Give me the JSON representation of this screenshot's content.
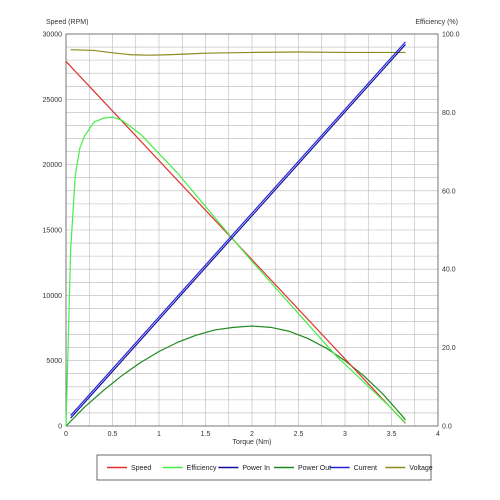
{
  "chart_data": {
    "type": "line",
    "xlabel": "Torque (Nm)",
    "ylabel_left": "Speed (RPM)",
    "ylabel_right": "Efficiency (%)",
    "xlim": [
      0,
      4
    ],
    "ylim_left": [
      0,
      30000
    ],
    "ylim_right": [
      0,
      100
    ],
    "x_ticks": [
      "0",
      "0.5",
      "1",
      "1.5",
      "2",
      "2.5",
      "3",
      "3.5",
      "4"
    ],
    "y_left_ticks": [
      "0",
      "5000",
      "10000",
      "15000",
      "20000",
      "25000",
      "30000"
    ],
    "y_right_ticks": [
      "0.0",
      "20.0",
      "40.0",
      "60.0",
      "80.0",
      "100.0"
    ],
    "grid": true,
    "legend_position": "bottom",
    "series": [
      {
        "name": "Speed",
        "color": "#e03030",
        "axis": "left",
        "x": [
          0,
          3.65
        ],
        "y": [
          27900,
          200
        ]
      },
      {
        "name": "Efficiency",
        "color": "#44ee44",
        "axis": "right",
        "x": [
          0.0,
          0.02,
          0.05,
          0.1,
          0.15,
          0.2,
          0.3,
          0.4,
          0.5,
          0.6,
          0.8,
          1.0,
          1.2,
          1.5,
          1.8,
          2.0,
          2.3,
          2.6,
          2.9,
          3.1,
          3.3,
          3.5,
          3.6,
          3.65
        ],
        "y": [
          0,
          18,
          45,
          64,
          71,
          74,
          77.5,
          78.5,
          78.8,
          78,
          74.5,
          69.5,
          64.5,
          56,
          47.5,
          42,
          34,
          26,
          18,
          13.5,
          9,
          4.5,
          2,
          0.8
        ]
      },
      {
        "name": "Power In",
        "color": "#101099",
        "axis": "left",
        "x": [
          0.05,
          3.65
        ],
        "y": [
          600,
          29200
        ]
      },
      {
        "name": "Power Out",
        "color": "#208820",
        "axis": "left",
        "x": [
          0.0,
          0.2,
          0.4,
          0.6,
          0.8,
          1.0,
          1.2,
          1.4,
          1.6,
          1.8,
          2.0,
          2.2,
          2.4,
          2.6,
          2.8,
          3.0,
          3.2,
          3.4,
          3.6,
          3.65
        ],
        "y": [
          0,
          1450,
          2700,
          3850,
          4850,
          5700,
          6400,
          6950,
          7350,
          7550,
          7650,
          7550,
          7250,
          6700,
          5950,
          5000,
          3850,
          2500,
          900,
          450
        ]
      },
      {
        "name": "Current",
        "color": "#2222dd",
        "axis": "left",
        "x": [
          0.05,
          3.65
        ],
        "y": [
          800,
          29400
        ]
      },
      {
        "name": "Voltage",
        "color": "#8a8a20",
        "axis": "right",
        "x": [
          0.05,
          0.3,
          0.5,
          0.7,
          0.9,
          1.1,
          1.3,
          1.5,
          2.0,
          2.5,
          3.0,
          3.5,
          3.65
        ],
        "y": [
          96.0,
          95.8,
          95.2,
          94.7,
          94.6,
          94.7,
          94.9,
          95.1,
          95.3,
          95.4,
          95.3,
          95.3,
          95.3
        ]
      }
    ]
  }
}
